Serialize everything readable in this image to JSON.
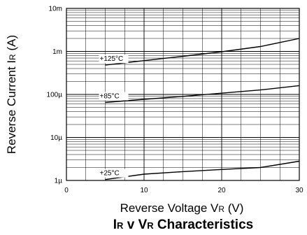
{
  "chart_data": {
    "type": "line",
    "title": "IR v VR Characteristics",
    "title_parts": [
      "I",
      "R",
      " v ",
      "V",
      "R",
      " Characteristics"
    ],
    "xlabel": "Reverse Voltage VR (V)",
    "xlabel_parts": [
      "Reverse Voltage V",
      "R",
      " (V)"
    ],
    "ylabel": "Reverse Current IR (A)",
    "ylabel_parts": [
      "Reverse Current I",
      "R",
      " (A)"
    ],
    "xlim": [
      0,
      30
    ],
    "ylim": [
      1e-06,
      0.01
    ],
    "yscale": "log",
    "grid": true,
    "legend": "none",
    "x_ticks": [
      {
        "value": 0,
        "label": "0"
      },
      {
        "value": 10,
        "label": "10"
      },
      {
        "value": 20,
        "label": "20"
      },
      {
        "value": 30,
        "label": "30"
      }
    ],
    "y_ticks": [
      {
        "value": 1e-06,
        "label": "1µ"
      },
      {
        "value": 1e-05,
        "label": "10µ"
      },
      {
        "value": 0.0001,
        "label": "100µ"
      },
      {
        "value": 0.001,
        "label": "1m"
      },
      {
        "value": 0.01,
        "label": "10m"
      }
    ],
    "series": [
      {
        "name": "+125°C",
        "x": [
          5,
          10,
          15,
          20,
          25,
          30
        ],
        "values": [
          0.00048,
          0.00061,
          0.00077,
          0.00098,
          0.0013,
          0.002
        ]
      },
      {
        "name": "+85°C",
        "x": [
          5,
          10,
          15,
          20,
          25,
          30
        ],
        "values": [
          6.5e-05,
          7.7e-05,
          9e-05,
          0.000107,
          0.000127,
          0.00016
        ]
      },
      {
        "name": "+25°C",
        "x": [
          5,
          10,
          15,
          20,
          25,
          30
        ],
        "values": [
          1.05e-06,
          1.4e-06,
          1.6e-06,
          1.8e-06,
          2e-06,
          2.8e-06
        ]
      }
    ]
  }
}
